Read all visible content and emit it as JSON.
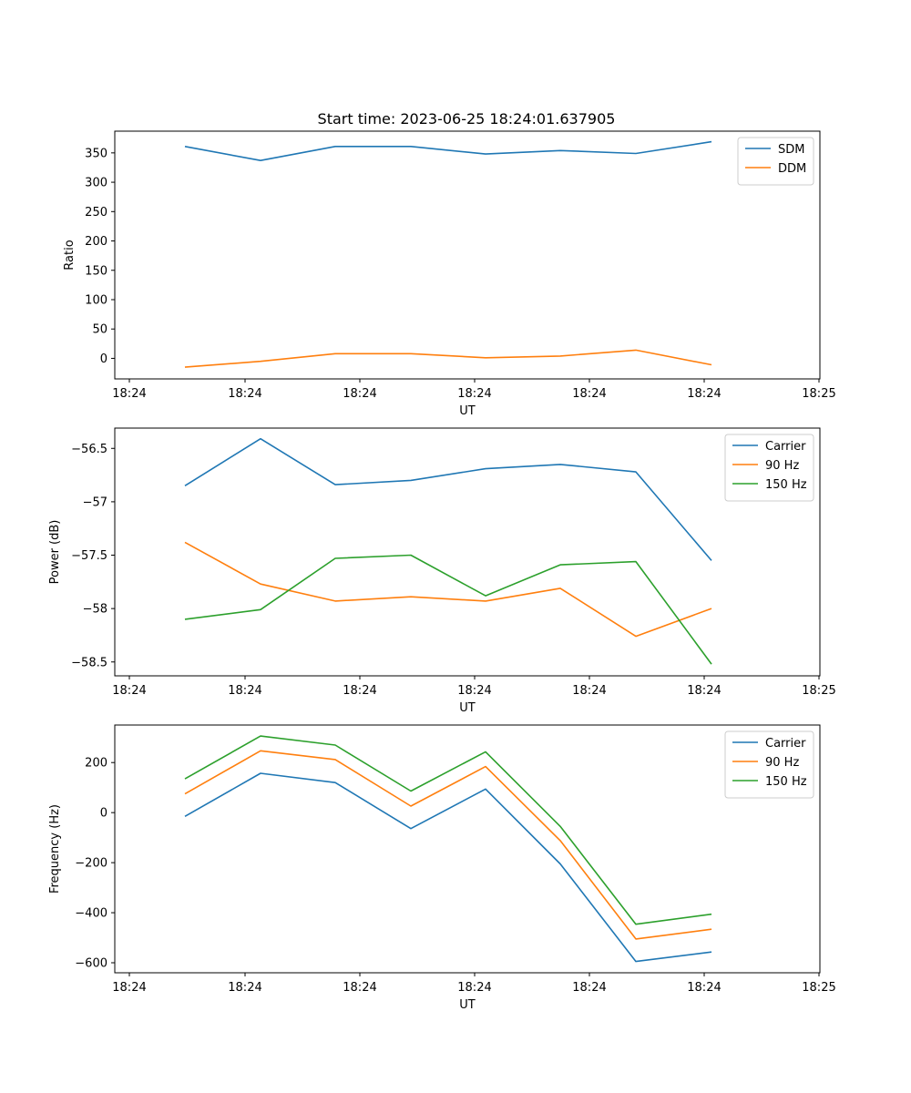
{
  "figure": {
    "title": "Start time: 2023-06-25 18:24:01.637905"
  },
  "colors": {
    "blue": "#1f77b4",
    "orange": "#ff7f0e",
    "green": "#2ca02c"
  },
  "chart_data": [
    {
      "type": "line",
      "title": "Start time: 2023-06-25 18:24:01.637905",
      "xlabel": "UT",
      "ylabel": "Ratio",
      "xticks": [
        "18:24",
        "18:24",
        "18:24",
        "18:24",
        "18:24",
        "18:24",
        "18:25"
      ],
      "yticks": [
        0,
        50,
        100,
        150,
        200,
        250,
        300,
        350
      ],
      "ylim": [
        -35,
        387
      ],
      "legend_position": "top-right",
      "series": [
        {
          "name": "SDM",
          "color": "#1f77b4",
          "values": [
            361,
            337,
            361,
            361,
            348,
            354,
            349,
            369
          ]
        },
        {
          "name": "DDM",
          "color": "#ff7f0e",
          "values": [
            -15,
            -5,
            8,
            8,
            1,
            4,
            14,
            -11
          ]
        }
      ]
    },
    {
      "type": "line",
      "title": "",
      "xlabel": "UT",
      "ylabel": "Power (dB)",
      "xticks": [
        "18:24",
        "18:24",
        "18:24",
        "18:24",
        "18:24",
        "18:24",
        "18:25"
      ],
      "yticks": [
        -56.5,
        -57.0,
        -57.5,
        -58.0,
        -58.5
      ],
      "ylim": [
        -58.63,
        -56.31
      ],
      "legend_position": "top-right",
      "series": [
        {
          "name": "Carrier",
          "color": "#1f77b4",
          "values": [
            -56.85,
            -56.41,
            -56.84,
            -56.8,
            -56.69,
            -56.65,
            -56.72,
            -57.55
          ]
        },
        {
          "name": "90 Hz",
          "color": "#ff7f0e",
          "values": [
            -57.38,
            -57.77,
            -57.93,
            -57.89,
            -57.93,
            -57.81,
            -58.26,
            -58.0
          ]
        },
        {
          "name": "150 Hz",
          "color": "#2ca02c",
          "values": [
            -58.1,
            -58.01,
            -57.53,
            -57.5,
            -57.88,
            -57.59,
            -57.56,
            -58.52
          ]
        }
      ]
    },
    {
      "type": "line",
      "title": "",
      "xlabel": "UT",
      "ylabel": "Frequency (Hz)",
      "xticks": [
        "18:24",
        "18:24",
        "18:24",
        "18:24",
        "18:24",
        "18:24",
        "18:25"
      ],
      "yticks": [
        200,
        0,
        -200,
        -400,
        -600
      ],
      "ylim": [
        -640,
        350
      ],
      "legend_position": "top-right",
      "series": [
        {
          "name": "Carrier",
          "color": "#1f77b4",
          "values": [
            -15,
            157,
            120,
            -64,
            94,
            -205,
            -595,
            -557
          ]
        },
        {
          "name": "90 Hz",
          "color": "#ff7f0e",
          "values": [
            75,
            247,
            212,
            26,
            184,
            -112,
            -505,
            -466
          ]
        },
        {
          "name": "150 Hz",
          "color": "#2ca02c",
          "values": [
            135,
            306,
            270,
            86,
            243,
            -55,
            -446,
            -406
          ]
        }
      ]
    }
  ]
}
